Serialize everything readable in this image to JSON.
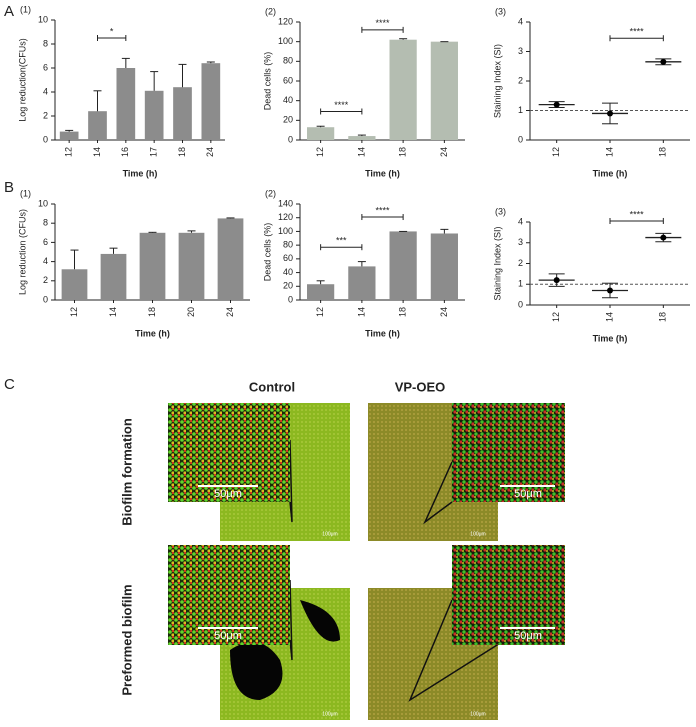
{
  "figure_labels": [
    "A",
    "B",
    "C"
  ],
  "chart_data": [
    {
      "type": "bar",
      "panel_label": "(1)",
      "ylabel": "Log reduction(CFUs)",
      "xlabel": "Time (h)",
      "categories": [
        "12",
        "14",
        "16",
        "17",
        "18",
        "24"
      ],
      "values": [
        0.7,
        2.4,
        6.0,
        4.1,
        4.4,
        6.4
      ],
      "errors": [
        0.1,
        1.7,
        0.8,
        1.6,
        1.9,
        0.1
      ],
      "color": "#8c8c8c",
      "ylim": [
        0,
        10
      ],
      "yticks": [
        0,
        2,
        4,
        6,
        8,
        10
      ],
      "annotations": [
        {
          "text": "*",
          "from": "14",
          "to": "16",
          "y": 8.5
        }
      ]
    },
    {
      "type": "bar",
      "panel_label": "(2)",
      "ylabel": "Dead cells (%)",
      "xlabel": "Time (h)",
      "categories": [
        "12",
        "14",
        "18",
        "24"
      ],
      "values": [
        13,
        4,
        102,
        100
      ],
      "errors": [
        1,
        1,
        1,
        0
      ],
      "color": "#b4bdb1",
      "ylim": [
        0,
        120
      ],
      "yticks": [
        0,
        20,
        40,
        60,
        80,
        100,
        120
      ],
      "annotations": [
        {
          "text": "****",
          "from": "12",
          "to": "14",
          "y": 29
        },
        {
          "text": "****",
          "from": "14",
          "to": "18",
          "y": 112
        }
      ]
    },
    {
      "type": "scatter",
      "panel_label": "(3)",
      "ylabel": "Staining Index (SI)",
      "xlabel": "Time (h)",
      "categories": [
        "12",
        "14",
        "18"
      ],
      "values": [
        1.2,
        0.9,
        2.65
      ],
      "errors": [
        0.1,
        0.35,
        0.1
      ],
      "color": "#000000",
      "ylim": [
        0,
        4
      ],
      "yticks": [
        0,
        1,
        2,
        3,
        4
      ],
      "reference_line": 1,
      "annotations": [
        {
          "text": "****",
          "from": "14",
          "to": "18",
          "y": 3.45
        }
      ]
    },
    {
      "type": "bar",
      "panel_label": "(1)",
      "ylabel": "Log reduction (CFUs)",
      "xlabel": "Time (h)",
      "categories": [
        "12",
        "14",
        "18",
        "20",
        "24"
      ],
      "values": [
        3.2,
        4.8,
        7.0,
        7.0,
        8.5
      ],
      "errors": [
        2.0,
        0.6,
        0.05,
        0.2,
        0.05
      ],
      "color": "#8c8c8c",
      "ylim": [
        0,
        10
      ],
      "yticks": [
        0,
        2,
        4,
        6,
        8,
        10
      ],
      "annotations": []
    },
    {
      "type": "bar",
      "panel_label": "(2)",
      "ylabel": "Dead cells (%)",
      "xlabel": "Time (h)",
      "categories": [
        "12",
        "14",
        "18",
        "24"
      ],
      "values": [
        23,
        49,
        100,
        97
      ],
      "errors": [
        5,
        7,
        0,
        6
      ],
      "color": "#8c8c8c",
      "ylim": [
        0,
        140
      ],
      "yticks": [
        0,
        20,
        40,
        60,
        80,
        100,
        120,
        140
      ],
      "annotations": [
        {
          "text": "***",
          "from": "12",
          "to": "14",
          "y": 77
        },
        {
          "text": "****",
          "from": "14",
          "to": "18",
          "y": 121
        }
      ]
    },
    {
      "type": "scatter",
      "panel_label": "(3)",
      "ylabel": "Staining Index (SI)",
      "xlabel": "Time (h)",
      "categories": [
        "12",
        "14",
        "18"
      ],
      "values": [
        1.2,
        0.7,
        3.25
      ],
      "errors": [
        0.3,
        0.35,
        0.2
      ],
      "color": "#000000",
      "ylim": [
        0,
        4
      ],
      "yticks": [
        0,
        1,
        2,
        3,
        4
      ],
      "reference_line": 1,
      "annotations": [
        {
          "text": "****",
          "from": "14",
          "to": "18",
          "y": 4.05
        }
      ]
    }
  ],
  "panel_c": {
    "columns": [
      "Control",
      "VP-OEO"
    ],
    "rows": [
      "Biofilm formation",
      "Preformed biofilm"
    ],
    "inset_scale": "50μm",
    "image_scale": "100μm"
  }
}
